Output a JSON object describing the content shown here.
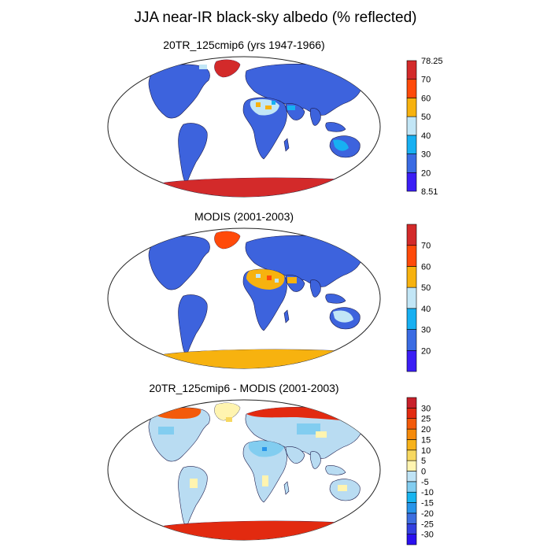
{
  "figure_title": "JJA near-IR black-sky albedo (% reflected)",
  "colors": {
    "land_low": "#3d63dd",
    "land_mid": "#2a4fe0",
    "diff_land": "#b9dcf2"
  },
  "chart_data": [
    {
      "type": "heatmap",
      "title": "20TR_125cmip6 (yrs 1947-1966)",
      "projection": "Robinson (global)",
      "colorbar": {
        "levels": [
          "8.51",
          "20",
          "30",
          "40",
          "50",
          "60",
          "70",
          "78.25"
        ],
        "colors": [
          "#3b1ef5",
          "#3a6be3",
          "#17b0f2",
          "#c2e6f6",
          "#f7b20f",
          "#ff4a0a",
          "#d32a2a"
        ],
        "min": 8.51,
        "max": 78.25
      }
    },
    {
      "type": "heatmap",
      "title": "MODIS (2001-2003)",
      "projection": "Robinson (global)",
      "colorbar": {
        "levels": [
          "",
          "20",
          "30",
          "40",
          "50",
          "60",
          "70",
          ""
        ],
        "colors": [
          "#3b1ef5",
          "#3a6be3",
          "#17b0f2",
          "#c2e6f6",
          "#f7b20f",
          "#ff4a0a",
          "#d32a2a"
        ]
      }
    },
    {
      "type": "heatmap",
      "title": "20TR_125cmip6 - MODIS (2001-2003)",
      "projection": "Robinson (global)",
      "colorbar": {
        "levels": [
          "",
          "-30",
          "-25",
          "-20",
          "-15",
          "-10",
          "-5",
          "0",
          "5",
          "10",
          "15",
          "20",
          "25",
          "30",
          ""
        ],
        "colors": [
          "#2a10f0",
          "#3340e0",
          "#3d6ee0",
          "#2895ea",
          "#18b5f0",
          "#82cdf0",
          "#bfe3f5",
          "#fff4b0",
          "#f7d860",
          "#f7b21a",
          "#f58a0a",
          "#f35a0a",
          "#e22a10",
          "#c8202a"
        ]
      }
    }
  ]
}
